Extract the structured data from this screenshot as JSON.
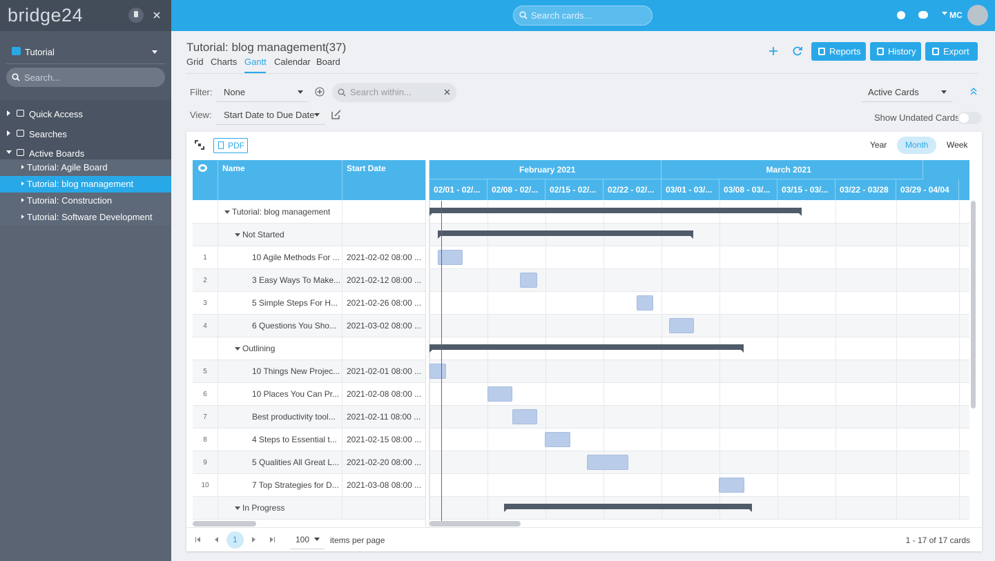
{
  "sidebar": {
    "logo": "bridge24",
    "board_select": "Tutorial",
    "search_placeholder": "Search...",
    "nav": [
      "Quick Access",
      "Searches",
      "Active Boards"
    ],
    "boards": [
      "Tutorial: Agile Board",
      "Tutorial: blog management",
      "Tutorial: Construction",
      "Tutorial: Software Development"
    ]
  },
  "topbar": {
    "search_placeholder": "Search cards...",
    "user": "MC"
  },
  "header": {
    "title": "Tutorial: blog management",
    "count": "(37)",
    "tabs": [
      "Grid",
      "Charts",
      "Gantt",
      "Calendar",
      "Board"
    ],
    "buttons": [
      "Reports",
      "History",
      "Export"
    ]
  },
  "filters": {
    "filter_label": "Filter:",
    "filter_value": "None",
    "search_placeholder": "Search within...",
    "view_label": "View:",
    "view_value": "Start Date to Due Date",
    "scope": "Active Cards",
    "undated": "Show Undated Cards"
  },
  "gantt": {
    "pdf": "PDF",
    "scales": [
      "Year",
      "Month",
      "Week"
    ],
    "columns": [
      "Name",
      "Start Date"
    ],
    "months": [
      "February 2021",
      "March 2021"
    ],
    "weeks": [
      "02/01 - 02/...",
      "02/08 - 02/...",
      "02/15 - 02/...",
      "02/22 - 02/...",
      "03/01 - 03/...",
      "03/08 - 03/...",
      "03/15 - 03/...",
      "03/22 - 03/28",
      "03/29 - 04/04"
    ],
    "rows": [
      {
        "name": "Tutorial: blog management"
      },
      {
        "name": "Not Started"
      },
      {
        "num": 1,
        "name": "10 Agile Methods For ...",
        "start": "2021-02-02 08:00 ..."
      },
      {
        "num": 2,
        "name": "3 Easy Ways To Make...",
        "start": "2021-02-12 08:00 ..."
      },
      {
        "num": 3,
        "name": "5 Simple Steps For H...",
        "start": "2021-02-26 08:00 ..."
      },
      {
        "num": 4,
        "name": "6 Questions You Sho...",
        "start": "2021-03-02 08:00 ..."
      },
      {
        "name": "Outlining"
      },
      {
        "num": 5,
        "name": "10 Things New Projec...",
        "start": "2021-02-01 08:00 ..."
      },
      {
        "num": 6,
        "name": "10 Places You Can Pr...",
        "start": "2021-02-08 08:00 ..."
      },
      {
        "num": 7,
        "name": "Best productivity tool...",
        "start": "2021-02-11 08:00 ..."
      },
      {
        "num": 8,
        "name": "4 Steps to Essential t...",
        "start": "2021-02-15 08:00 ..."
      },
      {
        "num": 9,
        "name": "5 Qualities All Great L...",
        "start": "2021-02-20 08:00 ..."
      },
      {
        "num": 10,
        "name": "7 Top Strategies for D...",
        "start": "2021-03-08 08:00 ..."
      },
      {
        "name": "In Progress"
      }
    ]
  },
  "pager": {
    "page": "1",
    "per_page": "100",
    "per_page_label": "items per page",
    "summary": "1 - 17 of 17 cards"
  }
}
